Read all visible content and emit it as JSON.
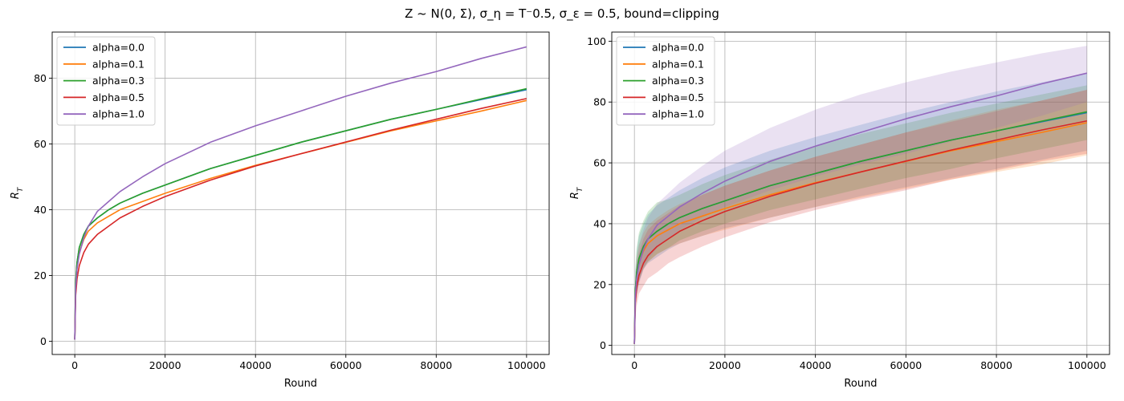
{
  "figure": {
    "title": "Z ~ N(0, Σ), σ_η = T⁻0.5, σ_ε = 0.5, bound=clipping"
  },
  "colors": {
    "alpha_0_0": "#1f77b4",
    "alpha_0_1": "#ff7f0e",
    "alpha_0_3": "#2ca02c",
    "alpha_0_5": "#d62728",
    "alpha_1_0": "#9467bd",
    "grid": "#b0b0b0",
    "axis": "#000000"
  },
  "chart_data": [
    {
      "type": "line",
      "panel": "left",
      "xlabel": "Round",
      "ylabel": "R_T",
      "xlim": [
        -5000,
        105000
      ],
      "ylim": [
        -4,
        94
      ],
      "xticks": [
        0,
        20000,
        40000,
        60000,
        80000,
        100000
      ],
      "xtick_labels": [
        "0",
        "20000",
        "40000",
        "60000",
        "80000",
        "100000"
      ],
      "yticks": [
        0,
        20,
        40,
        60,
        80
      ],
      "ytick_labels": [
        "0",
        "20",
        "40",
        "60",
        "80"
      ],
      "grid": true,
      "legend": "top-left",
      "x": [
        0,
        200,
        500,
        1000,
        2000,
        3000,
        5000,
        7500,
        10000,
        15000,
        20000,
        30000,
        40000,
        50000,
        60000,
        70000,
        80000,
        90000,
        100000
      ],
      "series": [
        {
          "name": "alpha=0.0",
          "values": [
            0.5,
            18,
            24,
            28.5,
            32.5,
            35,
            37.5,
            40,
            42,
            45,
            47.5,
            52.5,
            56.5,
            60.5,
            64,
            67.5,
            70.5,
            73.5,
            76.5
          ]
        },
        {
          "name": "alpha=0.1",
          "values": [
            0.5,
            17,
            23,
            27,
            31,
            33.5,
            36,
            38,
            40,
            42.5,
            45,
            49.5,
            53.5,
            57,
            60.5,
            64,
            67,
            70,
            73.2
          ]
        },
        {
          "name": "alpha=0.3",
          "values": [
            0.5,
            18,
            24,
            28.5,
            32.5,
            35,
            37.5,
            40,
            42,
            45,
            47.5,
            52.5,
            56.5,
            60.5,
            64,
            67.5,
            70.5,
            73.7,
            76.8
          ]
        },
        {
          "name": "alpha=0.5",
          "values": [
            0.5,
            14,
            19,
            23,
            27,
            29.5,
            32.5,
            35,
            37.5,
            41,
            44,
            49,
            53.3,
            57,
            60.6,
            64.2,
            67.5,
            70.8,
            73.8
          ]
        },
        {
          "name": "alpha=1.0",
          "values": [
            0.5,
            16,
            22,
            26.5,
            31.5,
            35,
            39.5,
            42.5,
            45.5,
            50,
            54,
            60.5,
            65.5,
            70,
            74.5,
            78.5,
            82,
            86,
            89.5
          ]
        }
      ]
    },
    {
      "type": "line",
      "panel": "right",
      "xlabel": "Round",
      "ylabel": "R_T",
      "xlim": [
        -5000,
        105000
      ],
      "ylim": [
        -3,
        103
      ],
      "xticks": [
        0,
        20000,
        40000,
        60000,
        80000,
        100000
      ],
      "xtick_labels": [
        "0",
        "20000",
        "40000",
        "60000",
        "80000",
        "100000"
      ],
      "yticks": [
        0,
        20,
        40,
        60,
        80,
        100
      ],
      "ytick_labels": [
        "0",
        "20",
        "40",
        "60",
        "80",
        "100"
      ],
      "grid": true,
      "legend": "top-left",
      "x": [
        0,
        200,
        500,
        1000,
        2000,
        3000,
        5000,
        7500,
        10000,
        15000,
        20000,
        30000,
        40000,
        50000,
        60000,
        70000,
        80000,
        90000,
        100000
      ],
      "series": [
        {
          "name": "alpha=0.0",
          "values": [
            0.5,
            18,
            24,
            28.5,
            32.5,
            35,
            37.5,
            40,
            42,
            45,
            47.5,
            52.5,
            56.5,
            60.5,
            64,
            67.5,
            70.5,
            73.5,
            76.5
          ],
          "upper": [
            0.6,
            24,
            31,
            36,
            40,
            43,
            46,
            48.5,
            51,
            55,
            58.5,
            64,
            68.5,
            72.5,
            76.5,
            80,
            83.5,
            86.5,
            89.5
          ],
          "lower": [
            0.4,
            12,
            17,
            21,
            25,
            27,
            29,
            31.5,
            33.5,
            36,
            38.5,
            42,
            45.5,
            49,
            52,
            55,
            58,
            61,
            64
          ]
        },
        {
          "name": "alpha=0.1",
          "values": [
            0.5,
            17,
            23,
            27,
            31,
            33.5,
            36,
            38,
            40,
            42.5,
            45,
            49.5,
            53.5,
            57,
            60.5,
            64,
            67,
            70,
            73.2
          ],
          "upper": [
            0.6,
            22,
            29,
            33,
            37,
            39.5,
            42,
            44.5,
            46.5,
            49.5,
            52.5,
            57.5,
            62,
            66,
            70,
            74,
            77.5,
            80.5,
            84
          ],
          "lower": [
            0.4,
            12,
            17,
            21,
            25,
            27.5,
            30,
            32,
            33.5,
            36,
            38,
            42,
            45.5,
            48.5,
            51.5,
            54.5,
            57,
            59.5,
            62.5
          ]
        },
        {
          "name": "alpha=0.3",
          "values": [
            0.5,
            18,
            24,
            28.5,
            32.5,
            35,
            37.5,
            40,
            42,
            45,
            47.5,
            52.5,
            56.5,
            60.5,
            64,
            67.5,
            70.5,
            73.7,
            76.8
          ],
          "upper": [
            0.6,
            25,
            32,
            37,
            41,
            44,
            47,
            48,
            49.5,
            53,
            56,
            61,
            65.5,
            69.5,
            73,
            76.5,
            79.5,
            82.5,
            85.5
          ],
          "lower": [
            0.4,
            12,
            17,
            21,
            25.5,
            27.5,
            30,
            32,
            34.5,
            37.5,
            40,
            44.5,
            48,
            51.5,
            55,
            58,
            61.5,
            64.5,
            67.5
          ]
        },
        {
          "name": "alpha=0.5",
          "values": [
            0.5,
            14,
            19,
            23,
            27,
            29.5,
            32.5,
            35,
            37.5,
            41,
            44,
            49,
            53.3,
            57,
            60.6,
            64.2,
            67.5,
            70.8,
            73.8
          ],
          "upper": [
            0.6,
            19,
            26,
            30,
            35,
            38,
            41,
            43.5,
            46,
            49.5,
            52.5,
            57.5,
            62,
            66,
            70,
            73.5,
            77,
            80.5,
            84
          ],
          "lower": [
            0.4,
            9,
            13,
            17,
            19.5,
            22,
            24,
            27,
            29,
            32.5,
            35.5,
            40.5,
            44.5,
            48,
            51,
            54.5,
            57.5,
            60.5,
            63
          ]
        },
        {
          "name": "alpha=1.0",
          "values": [
            0.5,
            16,
            22,
            26.5,
            31.5,
            35,
            39.5,
            42.5,
            45.5,
            50,
            54,
            60.5,
            65.5,
            70,
            74.5,
            78.5,
            82,
            86,
            89.5
          ],
          "upper": [
            0.6,
            21,
            28,
            33,
            38,
            42,
            46.5,
            50,
            53.5,
            59,
            64,
            71.5,
            77.5,
            82.5,
            86.5,
            90,
            93,
            96,
            98.5
          ],
          "lower": [
            0.4,
            11,
            16,
            20,
            25,
            28,
            32,
            35,
            38,
            42,
            45.5,
            51,
            55.5,
            59.5,
            63,
            67,
            71.5,
            75.5,
            80
          ]
        }
      ]
    }
  ]
}
